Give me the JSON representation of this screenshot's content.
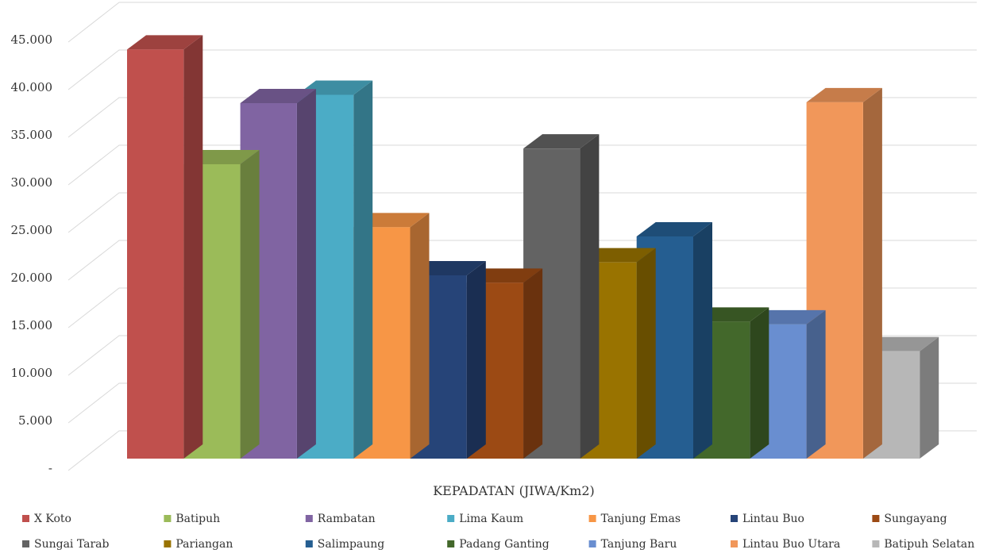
{
  "chart_data": {
    "type": "bar",
    "style": "3d-clustered",
    "xlabel": "KEPADATAN (JIWA/Km2)",
    "ylabel": "",
    "ylim": [
      0,
      45000
    ],
    "yticks": [
      {
        "value": 0,
        "label": "-"
      },
      {
        "value": 5000,
        "label": "5.000"
      },
      {
        "value": 10000,
        "label": "10.000"
      },
      {
        "value": 15000,
        "label": "15.000"
      },
      {
        "value": 20000,
        "label": "20.000"
      },
      {
        "value": 25000,
        "label": "25.000"
      },
      {
        "value": 30000,
        "label": "30.000"
      },
      {
        "value": 35000,
        "label": "35.000"
      },
      {
        "value": 40000,
        "label": "40.000"
      },
      {
        "value": 45000,
        "label": "45.000"
      }
    ],
    "grid": true,
    "legend_position": "bottom",
    "series": [
      {
        "name": "X Koto",
        "value": 44200,
        "color": "#c0504d"
      },
      {
        "name": "Batipuh",
        "value": 31800,
        "color": "#9bbb59"
      },
      {
        "name": "Rambatan",
        "value": 38400,
        "color": "#8064a2"
      },
      {
        "name": "Lima Kaum",
        "value": 39300,
        "color": "#4bacc6"
      },
      {
        "name": "Tanjung Emas",
        "value": 25000,
        "color": "#f79646"
      },
      {
        "name": "Lintau Buo",
        "value": 19800,
        "color": "#264478"
      },
      {
        "name": "Sungayang",
        "value": 19000,
        "color": "#9c4a14"
      },
      {
        "name": "Sungai Tarab",
        "value": 33500,
        "color": "#636363"
      },
      {
        "name": "Pariangan",
        "value": 21200,
        "color": "#997300"
      },
      {
        "name": "Salimpaung",
        "value": 24000,
        "color": "#255e91"
      },
      {
        "name": "Padang Ganting",
        "value": 14800,
        "color": "#43682b"
      },
      {
        "name": "Tanjung Baru",
        "value": 14500,
        "color": "#698ed0"
      },
      {
        "name": "Lintau Buo Utara",
        "value": 38500,
        "color": "#f1975a"
      },
      {
        "name": "Batipuh Selatan",
        "value": 11600,
        "color": "#b7b7b7"
      }
    ]
  }
}
